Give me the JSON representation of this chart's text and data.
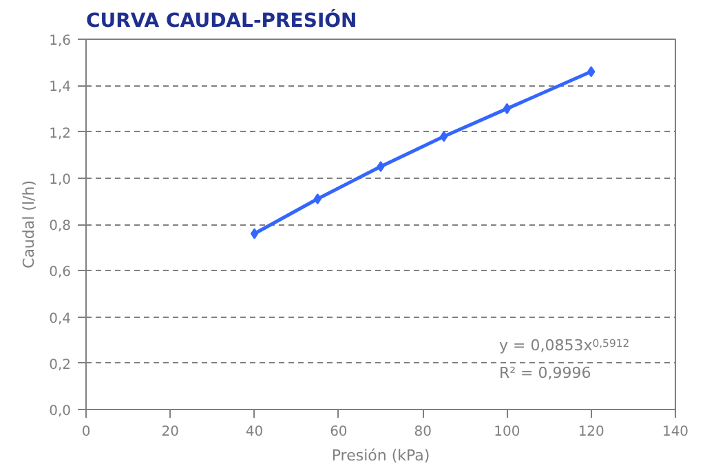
{
  "chart_data": {
    "type": "line",
    "title": "CURVA CAUDAL-PRESIÓN",
    "xlabel": "Presión (kPa)",
    "ylabel": "Caudal (l/h)",
    "x": [
      40,
      55,
      70,
      85,
      100,
      120
    ],
    "series": [
      {
        "color": "#3366ff",
        "values": [
          0.76,
          0.91,
          1.05,
          1.18,
          1.3,
          1.46
        ]
      }
    ],
    "xlim": [
      0,
      140
    ],
    "xticks": [
      0,
      20,
      40,
      60,
      80,
      100,
      120,
      140
    ],
    "ylim": [
      0,
      1.6
    ],
    "yticks": [
      {
        "value": 0,
        "label": "0,0"
      },
      {
        "value": 0.2,
        "label": "0,2"
      },
      {
        "value": 0.4,
        "label": "0,4"
      },
      {
        "value": 0.6,
        "label": "0,6"
      },
      {
        "value": 0.8,
        "label": "0,8"
      },
      {
        "value": 1.0,
        "label": "1,0"
      },
      {
        "value": 1.2,
        "label": "1,2"
      },
      {
        "value": 1.4,
        "label": "1,4"
      },
      {
        "value": 1.6,
        "label": "1,6"
      }
    ],
    "annotations": [
      "y = 0,0853x$^{0,5912}$",
      "R² = 0,9996"
    ],
    "grid": "y",
    "marker": "diamond",
    "line_style": "solid"
  }
}
